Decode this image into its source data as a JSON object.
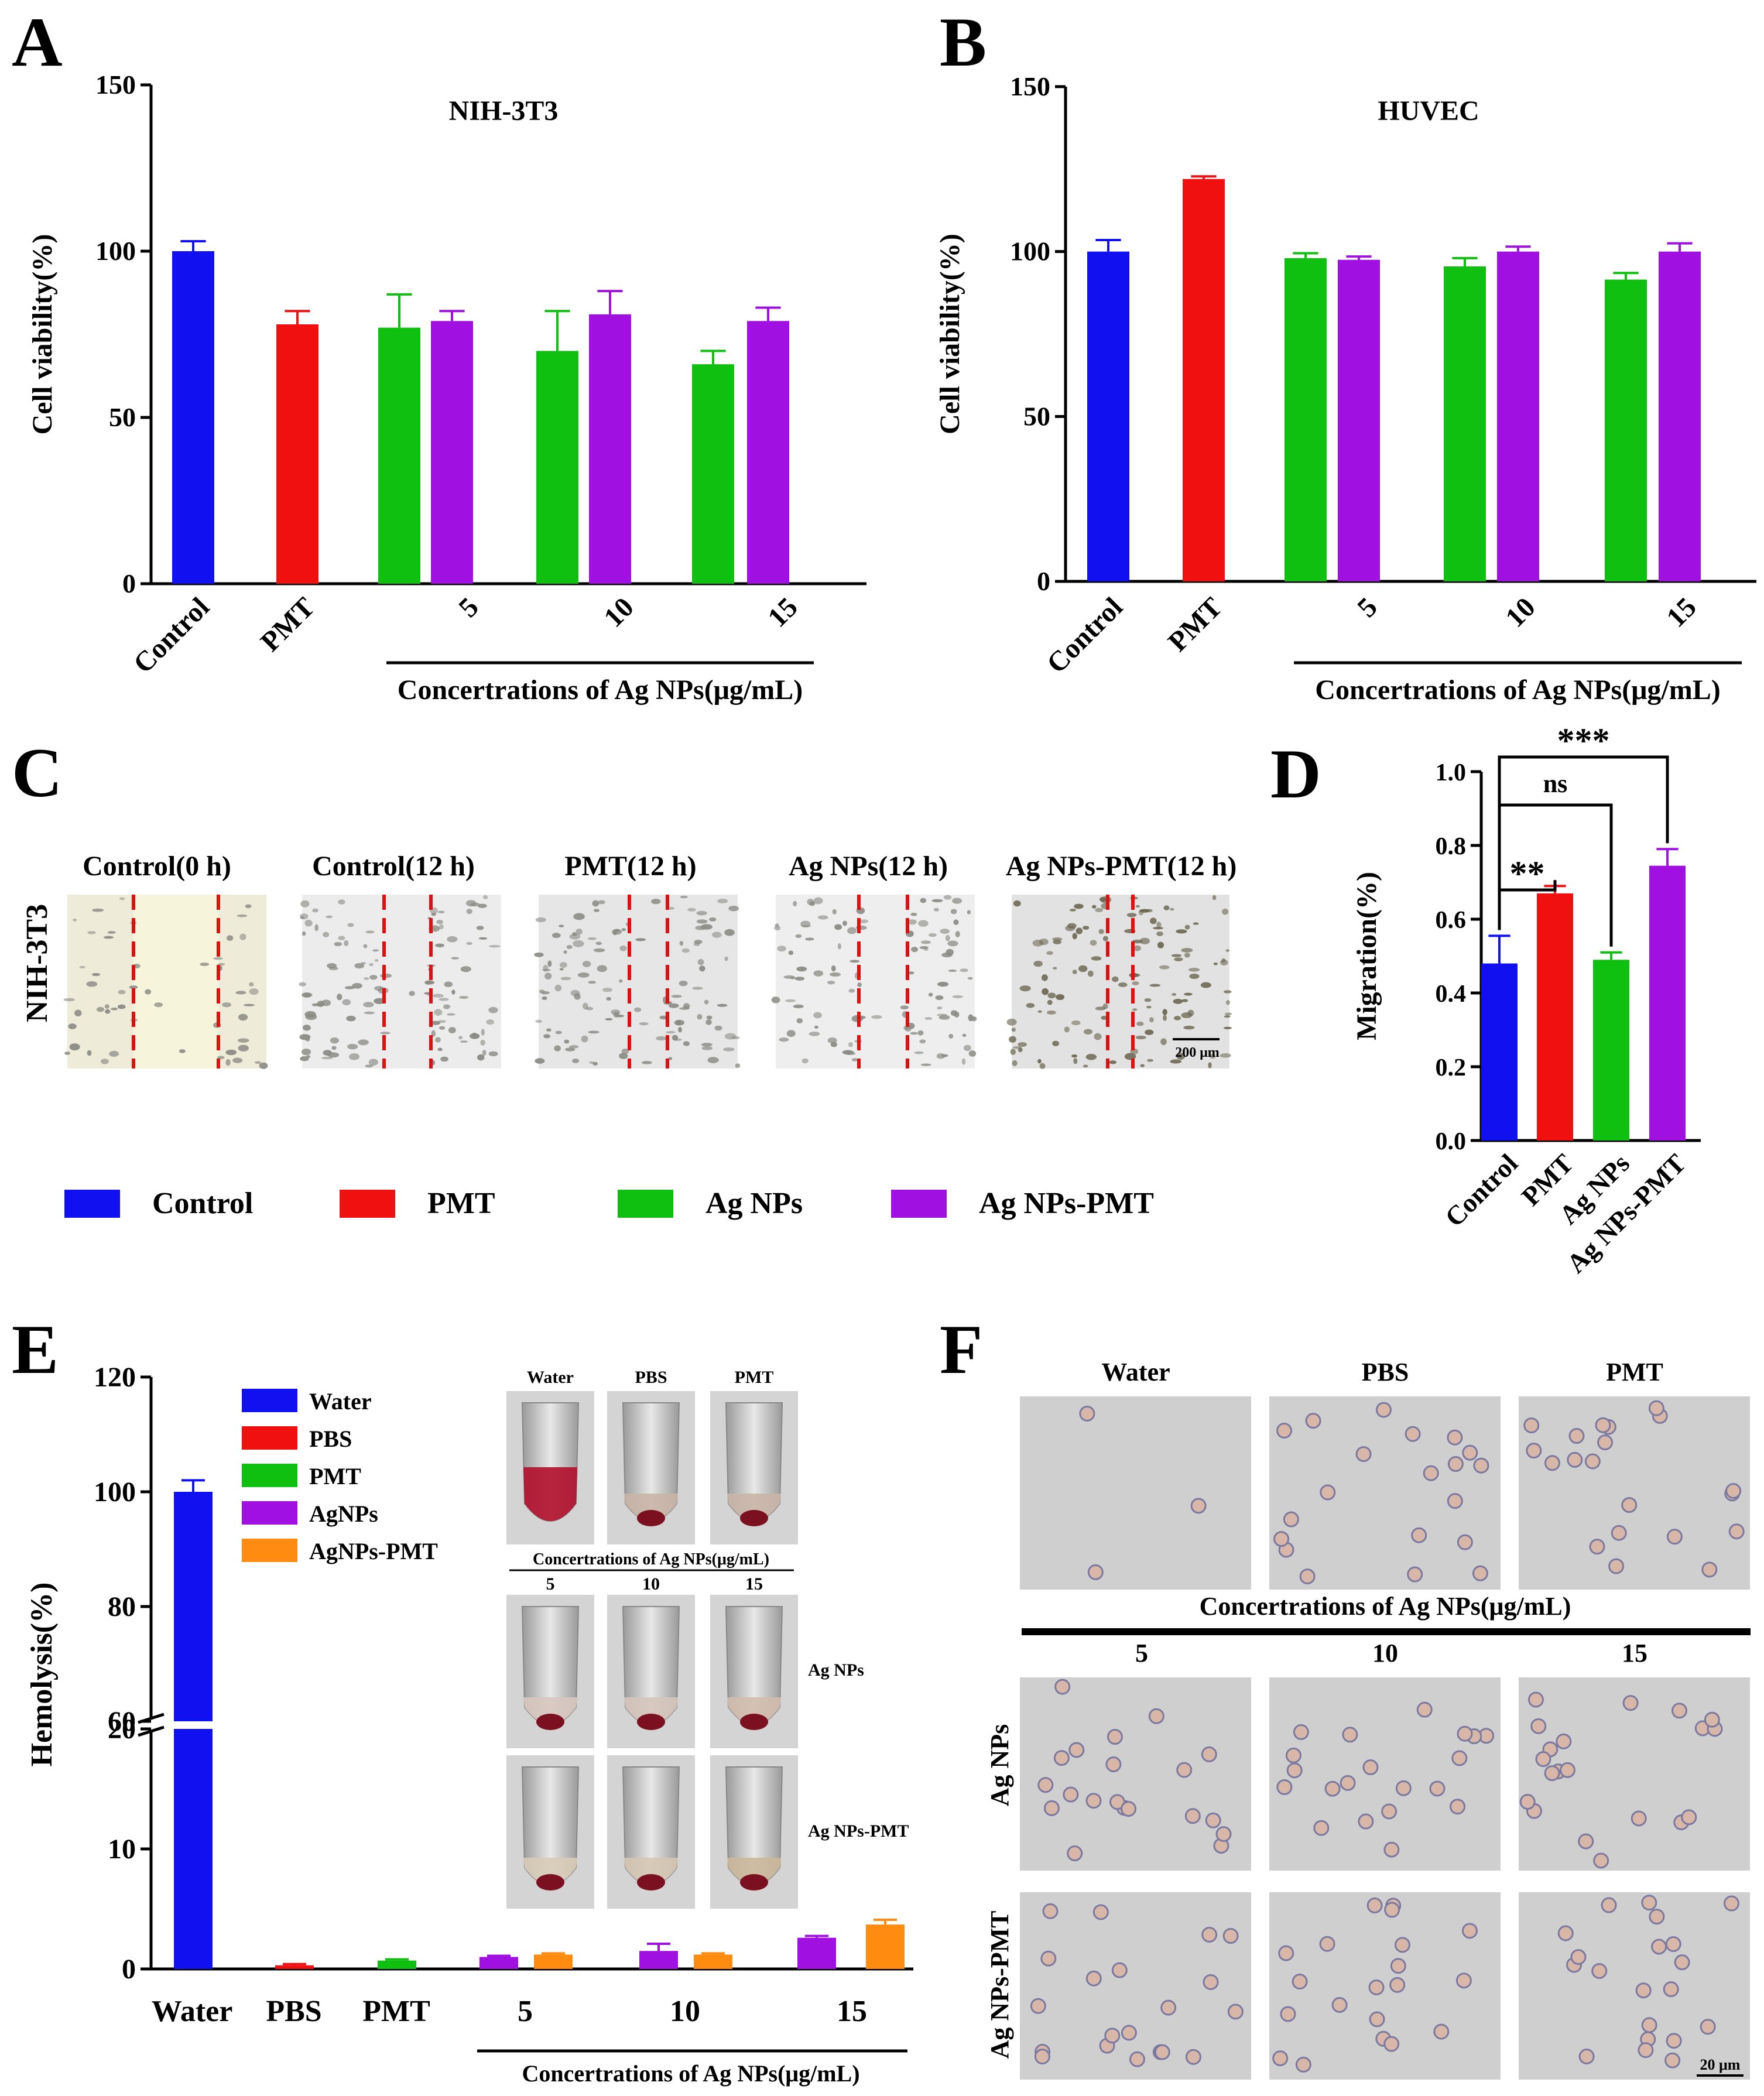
{
  "colors": {
    "control": "#1010f0",
    "pmt": "#f01010",
    "agnps": "#10c010",
    "agnps_pmt": "#a010e0",
    "agnps_pmt_e": "#ff8c10",
    "scratch_line": "#e01010",
    "well_bg": "#f1eee2",
    "blood_bg": "#cfcfcf"
  },
  "panels": {
    "a": "A",
    "b": "B",
    "c": "C",
    "d": "D",
    "e": "E",
    "f": "F"
  },
  "panelC": {
    "row_label": "NIH-3T3",
    "images": [
      {
        "title": "Control(0 h)"
      },
      {
        "title": "Control(12 h)"
      },
      {
        "title": "PMT(12 h)"
      },
      {
        "title": "Ag NPs(12 h)"
      },
      {
        "title": "Ag NPs-PMT(12 h)"
      }
    ],
    "scale_bar": "200 μm"
  },
  "legendCD": [
    {
      "label": "Control",
      "color_key": "control"
    },
    {
      "label": "PMT",
      "color_key": "pmt"
    },
    {
      "label": "Ag NPs",
      "color_key": "agnps"
    },
    {
      "label": "Ag NPs-PMT",
      "color_key": "agnps_pmt"
    }
  ],
  "insetE": {
    "top_labels": [
      "Water",
      "PBS",
      "PMT"
    ],
    "conc_title": "Concertrations of Ag NPs(μg/mL)",
    "conc_labels": [
      "5",
      "10",
      "15"
    ],
    "row_labels": [
      "Ag NPs",
      "Ag NPs-PMT"
    ]
  },
  "panelF": {
    "top_labels": [
      "Water",
      "PBS",
      "PMT"
    ],
    "conc_title": "Concertrations of Ag NPs(μg/mL)",
    "conc_labels": [
      "5",
      "10",
      "15"
    ],
    "row_labels": [
      "Ag NPs",
      "Ag NPs-PMT"
    ],
    "scale_bar": "20 μm"
  },
  "chart_data": [
    {
      "id": "A",
      "type": "bar",
      "title": "NIH-3T3",
      "ylabel": "Cell viability(%)",
      "ylim": [
        0,
        150
      ],
      "yticks": [
        0,
        50,
        100,
        150
      ],
      "categories": [
        "Control",
        "PMT",
        "5",
        "10",
        "15"
      ],
      "group_label": "Concertrations of Ag NPs(μg/mL)",
      "bars": [
        {
          "category": "Control",
          "series": "Control",
          "value": 100,
          "error": 3
        },
        {
          "category": "PMT",
          "series": "PMT",
          "value": 78,
          "error": 4
        },
        {
          "category": "5",
          "series": "Ag NPs",
          "value": 77,
          "error": 10
        },
        {
          "category": "5",
          "series": "Ag NPs-PMT",
          "value": 79,
          "error": 3
        },
        {
          "category": "10",
          "series": "Ag NPs",
          "value": 70,
          "error": 12
        },
        {
          "category": "10",
          "series": "Ag NPs-PMT",
          "value": 81,
          "error": 7
        },
        {
          "category": "15",
          "series": "Ag NPs",
          "value": 66,
          "error": 4
        },
        {
          "category": "15",
          "series": "Ag NPs-PMT",
          "value": 79,
          "error": 4
        }
      ]
    },
    {
      "id": "B",
      "type": "bar",
      "title": "HUVEC",
      "ylabel": "Cell viability(%)",
      "ylim": [
        0,
        150
      ],
      "yticks": [
        0,
        50,
        100,
        150
      ],
      "categories": [
        "Control",
        "PMT",
        "5",
        "10",
        "15"
      ],
      "group_label": "Concertrations of Ag NPs(μg/mL)",
      "bars": [
        {
          "category": "Control",
          "series": "Control",
          "value": 100,
          "error": 3.5
        },
        {
          "category": "PMT",
          "series": "PMT",
          "value": 122,
          "error": 0.8
        },
        {
          "category": "5",
          "series": "Ag NPs",
          "value": 98,
          "error": 1.5
        },
        {
          "category": "5",
          "series": "Ag NPs-PMT",
          "value": 97.5,
          "error": 1
        },
        {
          "category": "10",
          "series": "Ag NPs",
          "value": 95.5,
          "error": 2.5
        },
        {
          "category": "10",
          "series": "Ag NPs-PMT",
          "value": 100,
          "error": 1.5
        },
        {
          "category": "15",
          "series": "Ag NPs",
          "value": 91.5,
          "error": 2
        },
        {
          "category": "15",
          "series": "Ag NPs-PMT",
          "value": 100,
          "error": 2.5
        }
      ]
    },
    {
      "id": "D",
      "type": "bar",
      "ylabel": "Migration(%)",
      "ylim": [
        0,
        1.0
      ],
      "yticks": [
        "0.0",
        "0.2",
        "0.4",
        "0.6",
        "0.8",
        "1.0"
      ],
      "categories": [
        "Control",
        "PMT",
        "Ag NPs",
        "Ag NPs-PMT"
      ],
      "bars": [
        {
          "category": "Control",
          "series": "Control",
          "value": 0.48,
          "error": 0.075
        },
        {
          "category": "PMT",
          "series": "PMT",
          "value": 0.67,
          "error": 0.02
        },
        {
          "category": "Ag NPs",
          "series": "Ag NPs",
          "value": 0.49,
          "error": 0.02
        },
        {
          "category": "Ag NPs-PMT",
          "series": "Ag NPs-PMT",
          "value": 0.745,
          "error": 0.045
        }
      ],
      "significance": [
        {
          "from": "Control",
          "to": "PMT",
          "label": "**"
        },
        {
          "from": "Control",
          "to": "Ag NPs",
          "label": "ns"
        },
        {
          "from": "Control",
          "to": "Ag NPs-PMT",
          "label": "***"
        }
      ]
    },
    {
      "id": "E",
      "type": "bar",
      "ylabel": "Hemolysis(%)",
      "ylim": [
        0,
        120
      ],
      "axis_break": [
        20,
        60
      ],
      "yticks": [
        0,
        10,
        20,
        60,
        80,
        100,
        120
      ],
      "categories": [
        "Water",
        "PBS",
        "PMT",
        "5",
        "10",
        "15"
      ],
      "group_label": "Concertrations of Ag NPs(μg/mL)",
      "legend": [
        "Water",
        "PBS",
        "PMT",
        "AgNPs",
        "AgNPs-PMT"
      ],
      "bars": [
        {
          "category": "Water",
          "series": "Water",
          "value": 100,
          "error": 2
        },
        {
          "category": "PBS",
          "series": "PBS",
          "value": 0.3,
          "error": 0.1
        },
        {
          "category": "PMT",
          "series": "PMT",
          "value": 0.7,
          "error": 0.1
        },
        {
          "category": "5",
          "series": "AgNPs",
          "value": 1.0,
          "error": 0.1
        },
        {
          "category": "5",
          "series": "AgNPs-PMT",
          "value": 1.2,
          "error": 0.1
        },
        {
          "category": "10",
          "series": "AgNPs",
          "value": 1.5,
          "error": 0.6
        },
        {
          "category": "10",
          "series": "AgNPs-PMT",
          "value": 1.2,
          "error": 0.1
        },
        {
          "category": "15",
          "series": "AgNPs",
          "value": 2.6,
          "error": 0.15
        },
        {
          "category": "15",
          "series": "AgNPs-PMT",
          "value": 3.7,
          "error": 0.4
        }
      ]
    }
  ]
}
